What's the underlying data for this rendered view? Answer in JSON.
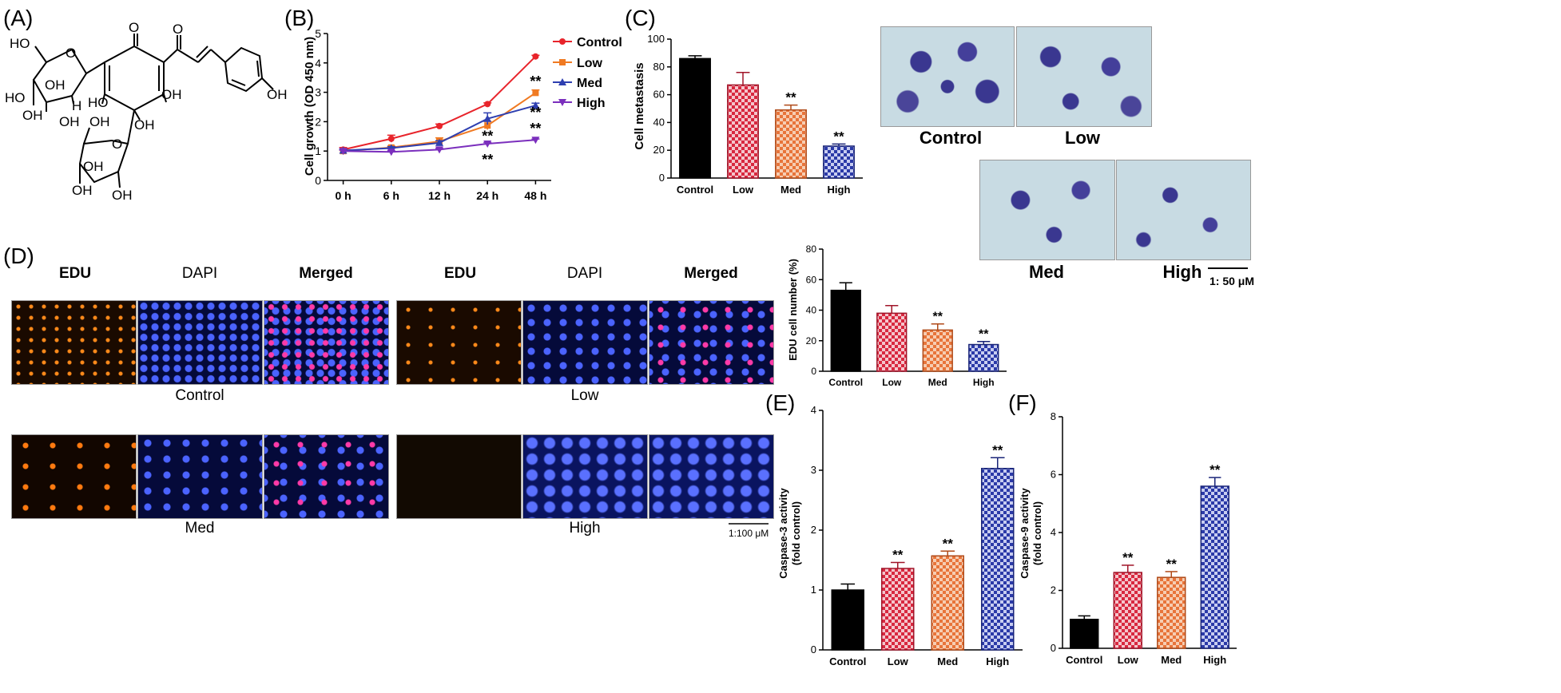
{
  "panel_labels": [
    "(A)",
    "(B)",
    "(C)",
    "(D)",
    "(E)",
    "(F)"
  ],
  "molecule": {
    "atoms": [
      "O",
      "O",
      "HO",
      "O",
      "OH",
      "OH",
      "HO",
      "OH",
      "OH",
      "H",
      "HO",
      "OH",
      "OH",
      "O",
      "OH",
      "OH",
      "OH",
      "OH"
    ]
  },
  "colors": {
    "control": "#000000",
    "low": "#d8283f",
    "med": "#e8743a",
    "high": "#2b3aa8",
    "line_control": "#e8242b",
    "line_low": "#f07a22",
    "line_med": "#2e3fb0",
    "line_high": "#7b2fbd"
  },
  "chart_data": [
    {
      "id": "B",
      "type": "line",
      "ylabel": "Cell growth (OD 450 nm)",
      "categories": [
        "0 h",
        "6 h",
        "12 h",
        "24 h",
        "48 h"
      ],
      "ylim": [
        0,
        5
      ],
      "yticks": [
        "0",
        "1",
        "2",
        "3",
        "4",
        "5"
      ],
      "series": [
        {
          "name": "Control",
          "values": [
            1.05,
            1.42,
            1.85,
            2.6,
            4.22
          ],
          "err": [
            0.07,
            0.12,
            0.07,
            0.04,
            0.04
          ]
        },
        {
          "name": "Low",
          "values": [
            1.0,
            1.12,
            1.33,
            1.87,
            2.98
          ],
          "err": [
            0.04,
            0.05,
            0.12,
            0.14,
            0.1
          ]
        },
        {
          "name": "Med",
          "values": [
            1.02,
            1.1,
            1.28,
            2.1,
            2.55
          ],
          "err": [
            0.04,
            0.05,
            0.07,
            0.2,
            0.08
          ]
        },
        {
          "name": "High",
          "values": [
            1.0,
            0.97,
            1.05,
            1.25,
            1.38
          ],
          "err": [
            0.03,
            0.04,
            0.04,
            0.04,
            0.03
          ]
        }
      ],
      "annotations": [
        "**",
        "**",
        "**",
        "**",
        "**"
      ]
    },
    {
      "id": "C",
      "type": "bar",
      "ylabel": "Cell metastasis",
      "categories": [
        "Control",
        "Low",
        "Med",
        "High"
      ],
      "values": [
        86,
        67,
        49,
        23
      ],
      "err": [
        2,
        9,
        3.5,
        1.5
      ],
      "ylim": [
        0,
        100
      ],
      "yticks": [
        "0",
        "20",
        "40",
        "60",
        "80",
        "100"
      ],
      "sig": [
        "",
        "",
        "**",
        "**"
      ]
    },
    {
      "id": "D",
      "type": "bar",
      "ylabel": "EDU cell number (%)",
      "categories": [
        "Control",
        "Low",
        "Med",
        "High"
      ],
      "values": [
        53,
        38,
        27,
        17.5
      ],
      "err": [
        5,
        5,
        4,
        2
      ],
      "ylim": [
        0,
        80
      ],
      "yticks": [
        "0",
        "20",
        "40",
        "60",
        "80"
      ],
      "sig": [
        "",
        "",
        "**",
        "**"
      ]
    },
    {
      "id": "E",
      "type": "bar",
      "ylabel": "Caspase-3 activity",
      "ylabel2": "(fold control)",
      "categories": [
        "Control",
        "Low",
        "Med",
        "High"
      ],
      "values": [
        1.0,
        1.36,
        1.57,
        3.03
      ],
      "err": [
        0.1,
        0.1,
        0.08,
        0.18
      ],
      "ylim": [
        0,
        4
      ],
      "yticks": [
        "0",
        "1",
        "2",
        "3",
        "4"
      ],
      "sig": [
        "",
        "**",
        "**",
        "**"
      ]
    },
    {
      "id": "F",
      "type": "bar",
      "ylabel": "Caspase-9 activity",
      "ylabel2": "(fold control)",
      "categories": [
        "Control",
        "Low",
        "Med",
        "High"
      ],
      "values": [
        1.0,
        2.62,
        2.45,
        5.6
      ],
      "err": [
        0.12,
        0.25,
        0.2,
        0.3
      ],
      "ylim": [
        0,
        8
      ],
      "yticks": [
        "0",
        "2",
        "4",
        "6",
        "8"
      ],
      "sig": [
        "",
        "**",
        "**",
        "**"
      ]
    }
  ],
  "panel_c_images": {
    "labels": [
      "Control",
      "Low",
      "Med",
      "High"
    ],
    "scale": "1: 50 μM"
  },
  "panel_d_images": {
    "headers": [
      "EDU",
      "DAPI",
      "Merged",
      "EDU",
      "DAPI",
      "Merged"
    ],
    "group_labels": [
      "Control",
      "Low",
      "Med",
      "High"
    ],
    "scale": "1:100 μM"
  }
}
